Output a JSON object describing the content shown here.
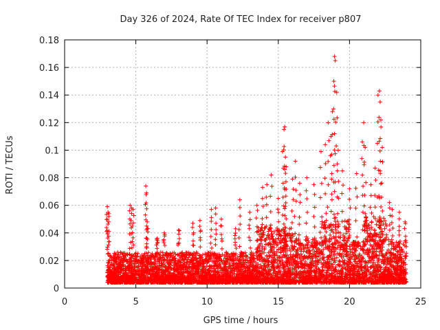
{
  "chart_data": {
    "type": "scatter",
    "title": "Day 326 of 2024, Rate Of TEC Index for receiver p807",
    "xlabel": "GPS time / hours",
    "ylabel": "ROTI / TECUs",
    "xlim": [
      0,
      25
    ],
    "ylim": [
      0,
      0.18
    ],
    "x_ticks": [
      "0",
      "5",
      "10",
      "15",
      "20",
      "25"
    ],
    "y_ticks": [
      "0",
      "0.02",
      "0.04",
      "0.06",
      "0.08",
      "0.1",
      "0.12",
      "0.14",
      "0.16",
      "0.18"
    ],
    "grid": true,
    "marker": "+",
    "color": "#ff0000",
    "series": [
      {
        "name": "ROTI",
        "note": "dense band of points between 0.005 and 0.03 from hour 3.0 to 24.0, with peaks listed below",
        "x": [
          3.0,
          3.05,
          3.1,
          4.6,
          4.7,
          4.8,
          5.7,
          5.75,
          5.8,
          6.5,
          7.0,
          8.0,
          9.0,
          9.5,
          10.3,
          10.6,
          11.0,
          12.0,
          12.3,
          13.0,
          13.5,
          13.9,
          14.2,
          14.5,
          15.0,
          15.3,
          15.4,
          15.45,
          15.5,
          15.55,
          16.0,
          16.2,
          16.5,
          17.0,
          17.5,
          18.0,
          18.3,
          18.5,
          18.7,
          18.8,
          18.9,
          18.95,
          19.0,
          19.1,
          19.2,
          19.5,
          20.0,
          20.5,
          20.9,
          21.0,
          21.1,
          21.5,
          21.8,
          22.0,
          22.1,
          22.15,
          22.2,
          22.3,
          22.8,
          23.0,
          23.5,
          23.9
        ],
        "y": [
          0.059,
          0.055,
          0.054,
          0.06,
          0.058,
          0.057,
          0.074,
          0.069,
          0.048,
          0.036,
          0.04,
          0.042,
          0.047,
          0.049,
          0.057,
          0.058,
          0.05,
          0.043,
          0.064,
          0.055,
          0.06,
          0.073,
          0.075,
          0.082,
          0.065,
          0.099,
          0.115,
          0.117,
          0.095,
          0.088,
          0.079,
          0.092,
          0.076,
          0.08,
          0.075,
          0.099,
          0.104,
          0.12,
          0.11,
          0.128,
          0.15,
          0.168,
          0.165,
          0.142,
          0.1,
          0.085,
          0.072,
          0.083,
          0.106,
          0.12,
          0.102,
          0.075,
          0.087,
          0.14,
          0.143,
          0.135,
          0.122,
          0.102,
          0.062,
          0.057,
          0.055,
          0.048
        ]
      }
    ]
  }
}
